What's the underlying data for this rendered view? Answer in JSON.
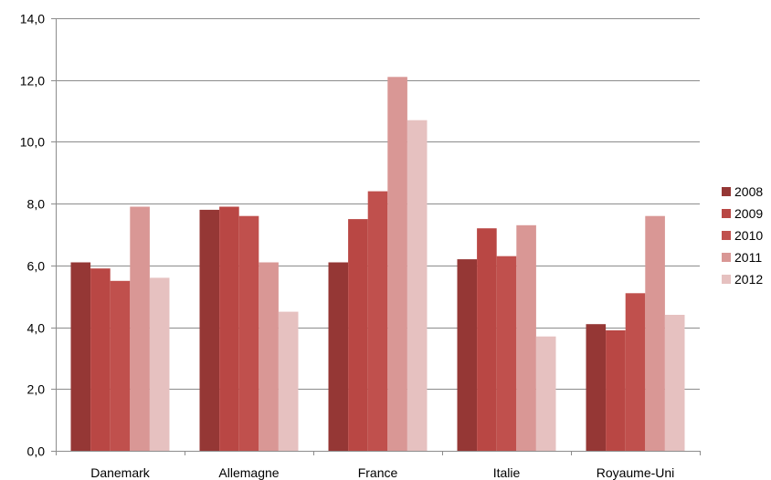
{
  "chart_data": {
    "type": "bar",
    "categories": [
      "Danemark",
      "Allemagne",
      "France",
      "Italie",
      "Royaume-Uni"
    ],
    "series": [
      {
        "name": "2008",
        "color": "#953735",
        "values": [
          6.1,
          7.8,
          6.1,
          6.2,
          4.1
        ]
      },
      {
        "name": "2009",
        "color": "#B94744",
        "values": [
          5.9,
          7.9,
          7.5,
          7.2,
          3.9
        ]
      },
      {
        "name": "2010",
        "color": "#C0504D",
        "values": [
          5.5,
          7.6,
          8.4,
          6.3,
          5.1
        ]
      },
      {
        "name": "2011",
        "color": "#D99795",
        "values": [
          7.9,
          6.1,
          12.1,
          7.3,
          7.6
        ]
      },
      {
        "name": "2012",
        "color": "#E6C1C0",
        "values": [
          5.6,
          4.5,
          10.7,
          3.7,
          4.4
        ]
      }
    ],
    "ylim": [
      0,
      14
    ],
    "yticks": [
      "0,0",
      "2,0",
      "4,0",
      "6,0",
      "8,0",
      "10,0",
      "12,0",
      "14,0"
    ],
    "grid": true,
    "legend_position": "right"
  }
}
